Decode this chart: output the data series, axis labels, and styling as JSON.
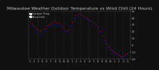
{
  "title": "Milwaukee Weather Outdoor Temperature vs Wind Chill (24 Hours)",
  "title_fontsize": 4.5,
  "legend_labels": [
    "Outdoor Temp",
    "Wind Chill"
  ],
  "series_colors": [
    "red",
    "blue"
  ],
  "background_color": "#111111",
  "plot_bg_color": "#111111",
  "grid_color": "#555555",
  "text_color": "#cccccc",
  "temp_x": [
    0,
    1,
    2,
    3,
    4,
    5,
    6,
    7,
    8,
    9,
    10,
    11,
    12,
    13,
    14,
    15,
    16,
    17,
    18,
    19,
    20,
    21,
    22,
    23,
    24,
    25,
    26,
    27,
    28,
    29,
    30,
    31,
    32,
    33,
    34,
    35,
    36,
    37,
    38,
    39,
    40,
    41,
    42,
    43,
    44,
    45,
    46,
    47
  ],
  "temp_y": [
    35,
    32,
    28,
    24,
    22,
    20,
    22,
    24,
    28,
    30,
    32,
    34,
    36,
    34,
    32,
    28,
    24,
    20,
    22,
    28,
    34,
    40,
    44,
    46,
    46,
    44,
    42,
    40,
    38,
    36,
    34,
    30,
    26,
    20,
    14,
    8,
    2,
    -2,
    -6,
    -8,
    -10,
    -12,
    -14,
    -16,
    -16,
    -14,
    -12,
    -10
  ],
  "chill_x": [
    0,
    1,
    2,
    3,
    4,
    5,
    6,
    7,
    8,
    9,
    10,
    11,
    12,
    13,
    14,
    15,
    16,
    17,
    18,
    19,
    20,
    21,
    22,
    23,
    24,
    25,
    26,
    27,
    28,
    29,
    30,
    31,
    32,
    33,
    34,
    35,
    36,
    37,
    38,
    39,
    40,
    41,
    42,
    43,
    44,
    45,
    46,
    47
  ],
  "chill_y": [
    30,
    28,
    24,
    20,
    18,
    16,
    18,
    20,
    24,
    26,
    28,
    30,
    32,
    30,
    28,
    24,
    20,
    16,
    18,
    24,
    30,
    36,
    40,
    42,
    44,
    42,
    40,
    38,
    36,
    34,
    32,
    28,
    24,
    18,
    12,
    6,
    0,
    -4,
    -8,
    -10,
    -12,
    -14,
    -16,
    -18,
    -18,
    -16,
    -14,
    -12
  ],
  "ylim": [
    -20,
    50
  ],
  "xlim": [
    -0.5,
    47.5
  ],
  "ytick_vals": [
    50,
    40,
    30,
    20,
    10,
    0,
    -10,
    -20
  ],
  "ytick_labels": [
    "50",
    "40",
    "30",
    "20",
    "10",
    "0",
    "-10",
    "-20"
  ],
  "vgrid_positions": [
    4,
    8,
    12,
    16,
    20,
    24,
    28,
    32,
    36,
    40,
    44
  ],
  "xtick_positions": [
    0,
    2,
    4,
    6,
    8,
    10,
    12,
    14,
    16,
    18,
    20,
    22,
    24,
    26,
    28,
    30,
    32,
    34,
    36,
    38,
    40,
    42,
    44,
    46
  ],
  "xtick_labels": [
    "1",
    "2",
    "3",
    "5",
    "6",
    "7",
    "8",
    "9",
    "10",
    "11",
    "1",
    "2",
    "3",
    "5",
    "6",
    "7",
    "8",
    "9",
    "10",
    "11",
    "1",
    "2",
    "3",
    "5"
  ]
}
